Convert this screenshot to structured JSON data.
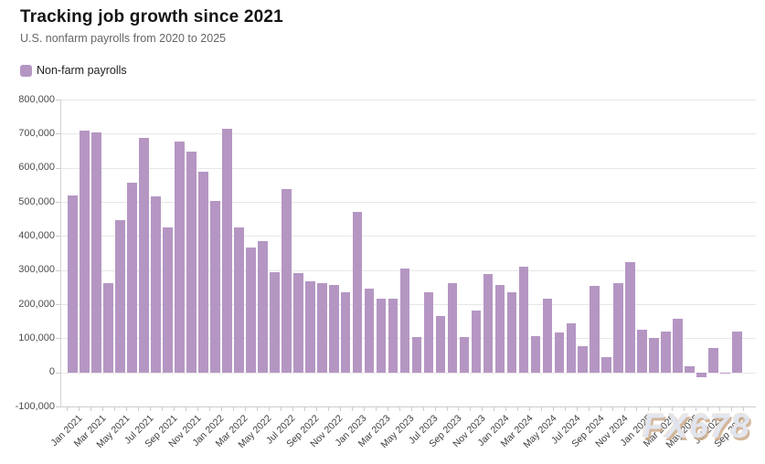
{
  "header": {
    "title": "Tracking job growth since 2021",
    "subtitle": "U.S. nonfarm payrolls from 2020 to 2025"
  },
  "legend": {
    "label": "Non-farm payrolls",
    "swatch_color": "#b596c3"
  },
  "watermark": "FX678",
  "chart_data": {
    "type": "bar",
    "title": "Tracking job growth since 2021",
    "subtitle": "U.S. nonfarm payrolls from 2020 to 2025",
    "xlabel": "",
    "ylabel": "",
    "ylim": [
      -100000,
      800000
    ],
    "grid": true,
    "legend_position": "top-left",
    "bar_color": "#b596c3",
    "x_label_every": 2,
    "y_ticks": [
      800000,
      700000,
      600000,
      500000,
      400000,
      300000,
      200000,
      100000,
      0,
      -100000
    ],
    "y_tick_labels": [
      "800,000",
      "700,000",
      "600,000",
      "500,000",
      "400,000",
      "300,000",
      "200,000",
      "100,000",
      "0",
      "-100,000"
    ],
    "categories": [
      "Jan 2021",
      "Feb 2021",
      "Mar 2021",
      "Apr 2021",
      "May 2021",
      "Jun 2021",
      "Jul 2021",
      "Aug 2021",
      "Sep 2021",
      "Oct 2021",
      "Nov 2021",
      "Dec 2021",
      "Jan 2022",
      "Feb 2022",
      "Mar 2022",
      "Apr 2022",
      "May 2022",
      "Jun 2022",
      "Jul 2022",
      "Aug 2022",
      "Sep 2022",
      "Oct 2022",
      "Nov 2022",
      "Dec 2022",
      "Jan 2023",
      "Feb 2023",
      "Mar 2023",
      "Apr 2023",
      "May 2023",
      "Jun 2023",
      "Jul 2023",
      "Aug 2023",
      "Sep 2023",
      "Oct 2023",
      "Nov 2023",
      "Dec 2023",
      "Jan 2024",
      "Feb 2024",
      "Mar 2024",
      "Apr 2024",
      "May 2024",
      "Jun 2024",
      "Jul 2024",
      "Aug 2024",
      "Sep 2024",
      "Oct 2024",
      "Nov 2024",
      "Dec 2024",
      "Jan 2025",
      "Feb 2025",
      "Mar 2025",
      "Apr 2025",
      "May 2025",
      "Jun 2025",
      "Jul 2025",
      "Aug 2025",
      "Sep 2025"
    ],
    "series": [
      {
        "name": "Non-farm payrolls",
        "values": [
          520000,
          710000,
          704000,
          263000,
          447000,
          557000,
          689000,
          517000,
          424000,
          677000,
          647000,
          588000,
          504000,
          714000,
          426000,
          366000,
          384000,
          293000,
          537000,
          292000,
          267000,
          261000,
          256000,
          236000,
          472000,
          246000,
          217000,
          217000,
          306000,
          105000,
          236000,
          165000,
          262000,
          105000,
          182000,
          290000,
          256000,
          236000,
          310000,
          108000,
          216000,
          118000,
          144000,
          78000,
          255000,
          44000,
          261000,
          323000,
          125000,
          102000,
          120000,
          158000,
          19000,
          -13000,
          73000,
          -4000,
          119000
        ]
      }
    ]
  }
}
